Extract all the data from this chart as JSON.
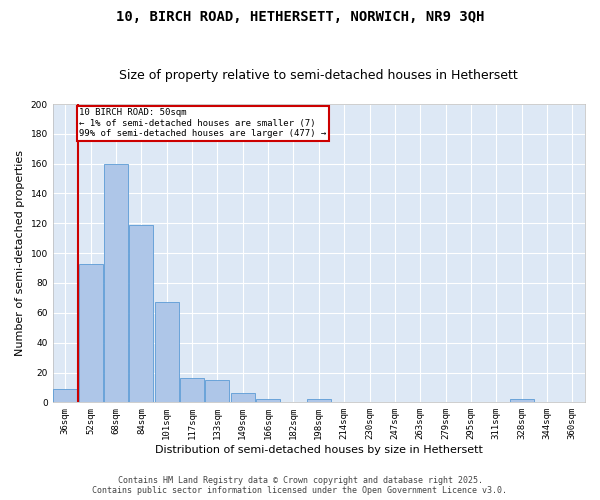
{
  "title_line1": "10, BIRCH ROAD, HETHERSETT, NORWICH, NR9 3QH",
  "title_line2": "Size of property relative to semi-detached houses in Hethersett",
  "xlabel": "Distribution of semi-detached houses by size in Hethersett",
  "ylabel": "Number of semi-detached properties",
  "categories": [
    "36sqm",
    "52sqm",
    "68sqm",
    "84sqm",
    "101sqm",
    "117sqm",
    "133sqm",
    "149sqm",
    "166sqm",
    "182sqm",
    "198sqm",
    "214sqm",
    "230sqm",
    "247sqm",
    "263sqm",
    "279sqm",
    "295sqm",
    "311sqm",
    "328sqm",
    "344sqm",
    "360sqm"
  ],
  "values": [
    9,
    93,
    160,
    119,
    67,
    16,
    15,
    6,
    2,
    0,
    2,
    0,
    0,
    0,
    0,
    0,
    0,
    0,
    2,
    0,
    0
  ],
  "bar_color": "#aec6e8",
  "bar_edge_color": "#5b9bd5",
  "vline_color": "#cc0000",
  "annotation_title": "10 BIRCH ROAD: 50sqm",
  "annotation_line1": "← 1% of semi-detached houses are smaller (7)",
  "annotation_line2": "99% of semi-detached houses are larger (477) →",
  "annotation_box_color": "#cc0000",
  "ylim": [
    0,
    200
  ],
  "yticks": [
    0,
    20,
    40,
    60,
    80,
    100,
    120,
    140,
    160,
    180,
    200
  ],
  "footer_line1": "Contains HM Land Registry data © Crown copyright and database right 2025.",
  "footer_line2": "Contains public sector information licensed under the Open Government Licence v3.0.",
  "bg_color": "#dde8f5",
  "fig_bg_color": "#ffffff",
  "title_fontsize": 10,
  "subtitle_fontsize": 9,
  "axis_label_fontsize": 8,
  "tick_fontsize": 6.5,
  "footer_fontsize": 6
}
